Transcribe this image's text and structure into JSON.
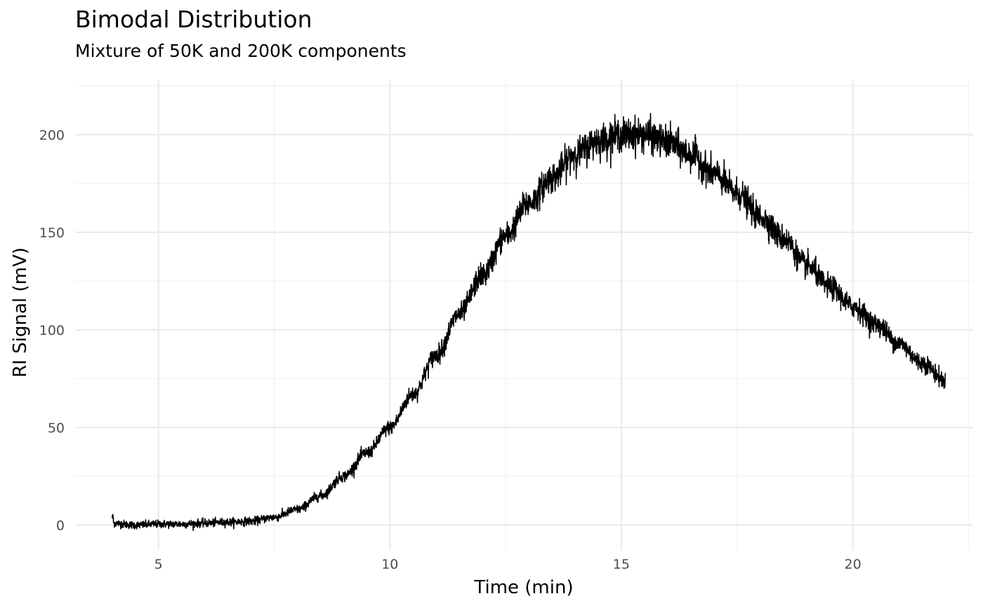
{
  "chart_data": {
    "type": "line",
    "title": "Bimodal Distribution",
    "subtitle": "Mixture of 50K and 200K components",
    "xlabel": "Time (min)",
    "ylabel": "RI Signal (mV)",
    "xlim": [
      3.2,
      22.6
    ],
    "ylim": [
      -13,
      228
    ],
    "x_ticks": [
      5,
      10,
      15,
      20
    ],
    "x_tick_labels": [
      "5",
      "10",
      "15",
      "20"
    ],
    "x_minor_ticks": [
      7.5,
      12.5,
      17.5,
      22.5
    ],
    "y_ticks": [
      0,
      50,
      100,
      150,
      200
    ],
    "y_tick_labels": [
      "0",
      "50",
      "100",
      "150",
      "200"
    ],
    "y_minor_ticks": [
      25,
      75,
      125,
      175,
      225
    ],
    "grid": true,
    "legend": "none",
    "line_color": "#000000",
    "series": [
      {
        "x": [
          4.0,
          4.5,
          5.0,
          5.5,
          6.0,
          6.5,
          7.0,
          7.5,
          8.0,
          8.5,
          9.0,
          9.5,
          10.0,
          10.5,
          11.0,
          11.5,
          12.0,
          12.5,
          13.0,
          13.5,
          14.0,
          14.5,
          15.0,
          15.5,
          16.0,
          16.5,
          17.0,
          17.5,
          18.0,
          18.5,
          19.0,
          19.5,
          20.0,
          20.5,
          21.0,
          21.5,
          22.0
        ],
        "values": [
          1,
          0,
          0.5,
          0.5,
          1,
          1.5,
          2,
          4,
          8,
          15,
          25,
          37,
          50,
          67,
          87,
          108,
          128,
          148,
          165,
          178,
          190,
          197,
          200,
          200,
          196,
          190,
          180,
          170,
          158,
          147,
          133,
          122,
          112,
          103,
          93,
          83,
          74
        ]
      }
    ]
  }
}
